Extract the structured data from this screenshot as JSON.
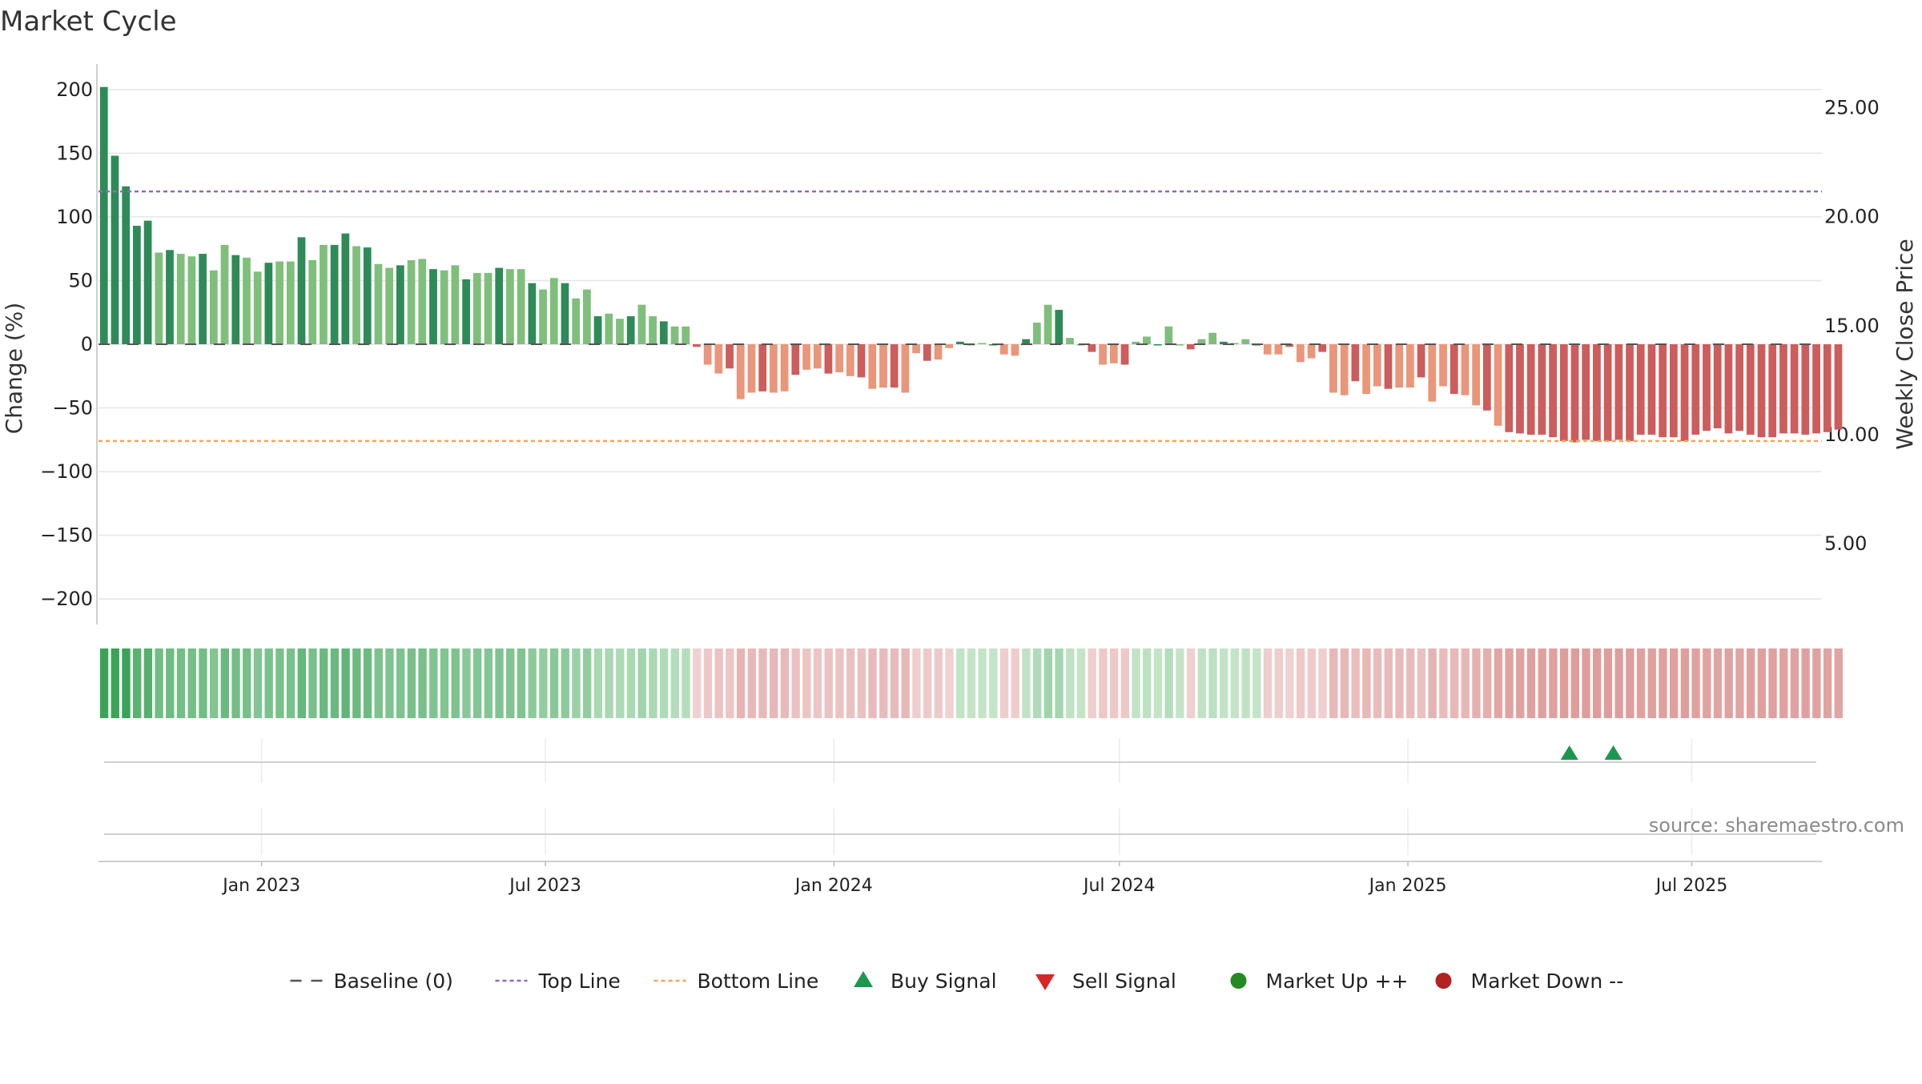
{
  "chart_data": {
    "type": "bar",
    "title": "Market Cycle",
    "ylabel": "Change (%)",
    "y2label": "Weekly Close Price",
    "source": "source: sharemaestro.com",
    "ylim": [
      -220,
      220
    ],
    "y_ticks": [
      200,
      150,
      100,
      50,
      0,
      -50,
      -100,
      -150,
      -200
    ],
    "y_tick_labels": [
      "200",
      "150",
      "100",
      "50",
      "0",
      "−50",
      "−100",
      "−150",
      "−200"
    ],
    "y2lim": [
      1.3,
      27.0
    ],
    "y2_ticks": [
      25,
      20,
      15,
      10,
      5
    ],
    "y2_tick_labels": [
      "25.00",
      "20.00",
      "15.00",
      "10.00",
      "5.00"
    ],
    "x_range": [
      "2022-09-19",
      "2025-09-22"
    ],
    "x_ticks": [
      "2023-01-01",
      "2023-07-01",
      "2024-01-01",
      "2024-07-01",
      "2025-01-01",
      "2025-07-01"
    ],
    "x_tick_labels": [
      "Jan 2023",
      "Jul 2023",
      "Jan 2024",
      "Jul 2024",
      "Jan 2025",
      "Jul 2025"
    ],
    "first_week": "2022-09-19",
    "baseline": 0,
    "top_line": 120,
    "bottom_line": -76,
    "values": [
      202,
      148,
      124,
      93,
      97,
      72,
      74,
      71,
      69,
      71,
      58,
      78,
      70,
      68,
      57,
      64,
      65,
      65,
      84,
      66,
      78,
      78,
      87,
      77,
      76,
      63,
      60,
      62,
      66,
      67,
      59,
      58,
      62,
      51,
      56,
      56,
      60,
      59,
      59,
      48,
      43,
      52,
      48,
      36,
      43,
      22,
      24,
      20,
      22,
      31,
      22,
      18,
      14,
      14,
      -2,
      -16,
      -23,
      -19,
      -43,
      -38,
      -37,
      -38,
      -37,
      -24,
      -20,
      -19,
      -23,
      -22,
      -25,
      -26,
      -35,
      -34,
      -34,
      -38,
      -7,
      -13,
      -12,
      -3,
      2,
      0,
      1,
      0,
      -8,
      -9,
      4,
      17,
      31,
      27,
      5,
      0,
      -6,
      -16,
      -15,
      -16,
      2,
      6,
      0,
      14,
      0,
      -4,
      4,
      9,
      2,
      1,
      4,
      0,
      -8,
      -8,
      -2,
      -14,
      -11,
      -6,
      -38,
      -40,
      -29,
      -39,
      -33,
      -35,
      -34,
      -34,
      -26,
      -45,
      -33,
      -39,
      -40,
      -48,
      -52,
      -64,
      -69,
      -70,
      -71,
      -71,
      -73,
      -76,
      -77,
      -75,
      -76,
      -76,
      -75,
      -76,
      -71,
      -71,
      -73,
      -73,
      -76,
      -71,
      -68,
      -66,
      -70,
      -68,
      -71,
      -73,
      -73,
      -70,
      -70,
      -71,
      -70,
      -69,
      -67
    ],
    "legend": [
      {
        "label": "Baseline (0)",
        "marker": "dash",
        "color": "#555555"
      },
      {
        "label": "Top Line",
        "marker": "dotted-line",
        "color": "#9467bd"
      },
      {
        "label": "Bottom Line",
        "marker": "dotted-line",
        "color": "#ffa15a"
      },
      {
        "label": "Buy Signal",
        "marker": "triangle-up",
        "color": "#1a9850"
      },
      {
        "label": "Sell Signal",
        "marker": "triangle-down",
        "color": "#d62728"
      },
      {
        "label": "Market Up ++",
        "marker": "circle",
        "color": "#228b22"
      },
      {
        "label": "Market Down --",
        "marker": "circle",
        "color": "#b22222"
      }
    ],
    "buy_signals": [
      "2025-04-14",
      "2025-05-12"
    ],
    "sell_signals": [],
    "market_up": [],
    "market_down": [],
    "colors": {
      "up_strong": "#2e8b57",
      "up_light": "#7fbf7b",
      "down_strong": "#cd5c5c",
      "down_light": "#e9967a",
      "top_line": "#9467bd",
      "bottom_line": "#f4a460",
      "grid": "#e6e6e6",
      "buy": "#1a9850"
    },
    "grid": true,
    "legend_position": "bottom"
  }
}
